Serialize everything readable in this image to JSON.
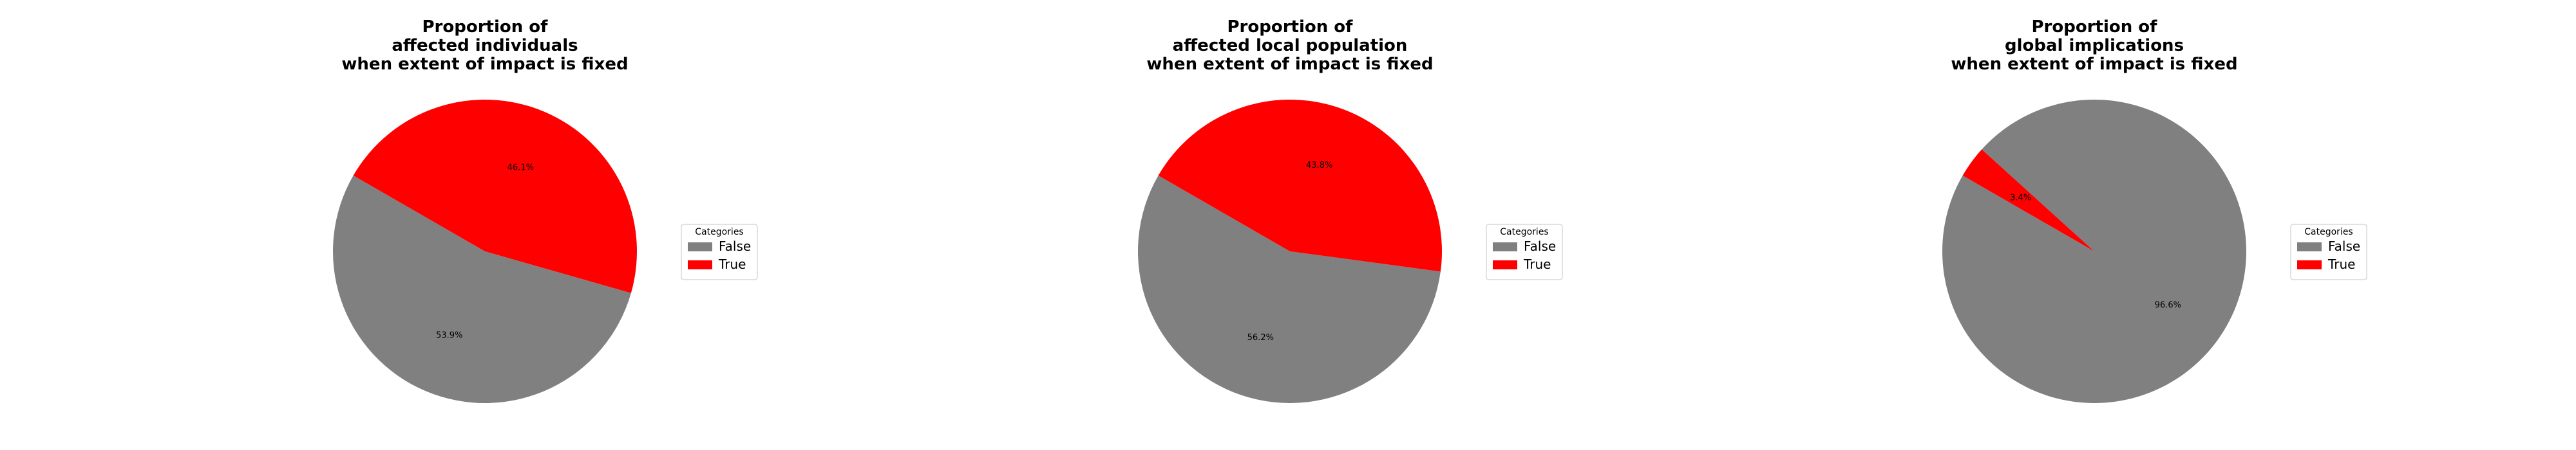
{
  "chart_data": [
    {
      "type": "pie",
      "title": "Proportion of\naffected individuals\nwhen extent of impact is fixed",
      "categories": [
        "False",
        "True"
      ],
      "values": [
        53.9,
        46.1
      ],
      "labels": [
        "53.9%",
        "46.1%"
      ],
      "colors": [
        "#808080",
        "#ff0000"
      ],
      "legend": {
        "title": "Categories",
        "entries": [
          "False",
          "True"
        ],
        "placement": "right"
      }
    },
    {
      "type": "pie",
      "title": "Proportion of\naffected local population\nwhen extent of impact is fixed",
      "categories": [
        "False",
        "True"
      ],
      "values": [
        56.2,
        43.8
      ],
      "labels": [
        "56.2%",
        "43.8%"
      ],
      "colors": [
        "#808080",
        "#ff0000"
      ],
      "legend": {
        "title": "Categories",
        "entries": [
          "False",
          "True"
        ],
        "placement": "right"
      }
    },
    {
      "type": "pie",
      "title": "Proportion of\nglobal implications\nwhen extent of impact is fixed",
      "categories": [
        "False",
        "True"
      ],
      "values": [
        96.6,
        3.4
      ],
      "labels": [
        "96.6%",
        "3.4%"
      ],
      "colors": [
        "#808080",
        "#ff0000"
      ],
      "legend": {
        "title": "Categories",
        "entries": [
          "False",
          "True"
        ],
        "placement": "right"
      }
    }
  ]
}
